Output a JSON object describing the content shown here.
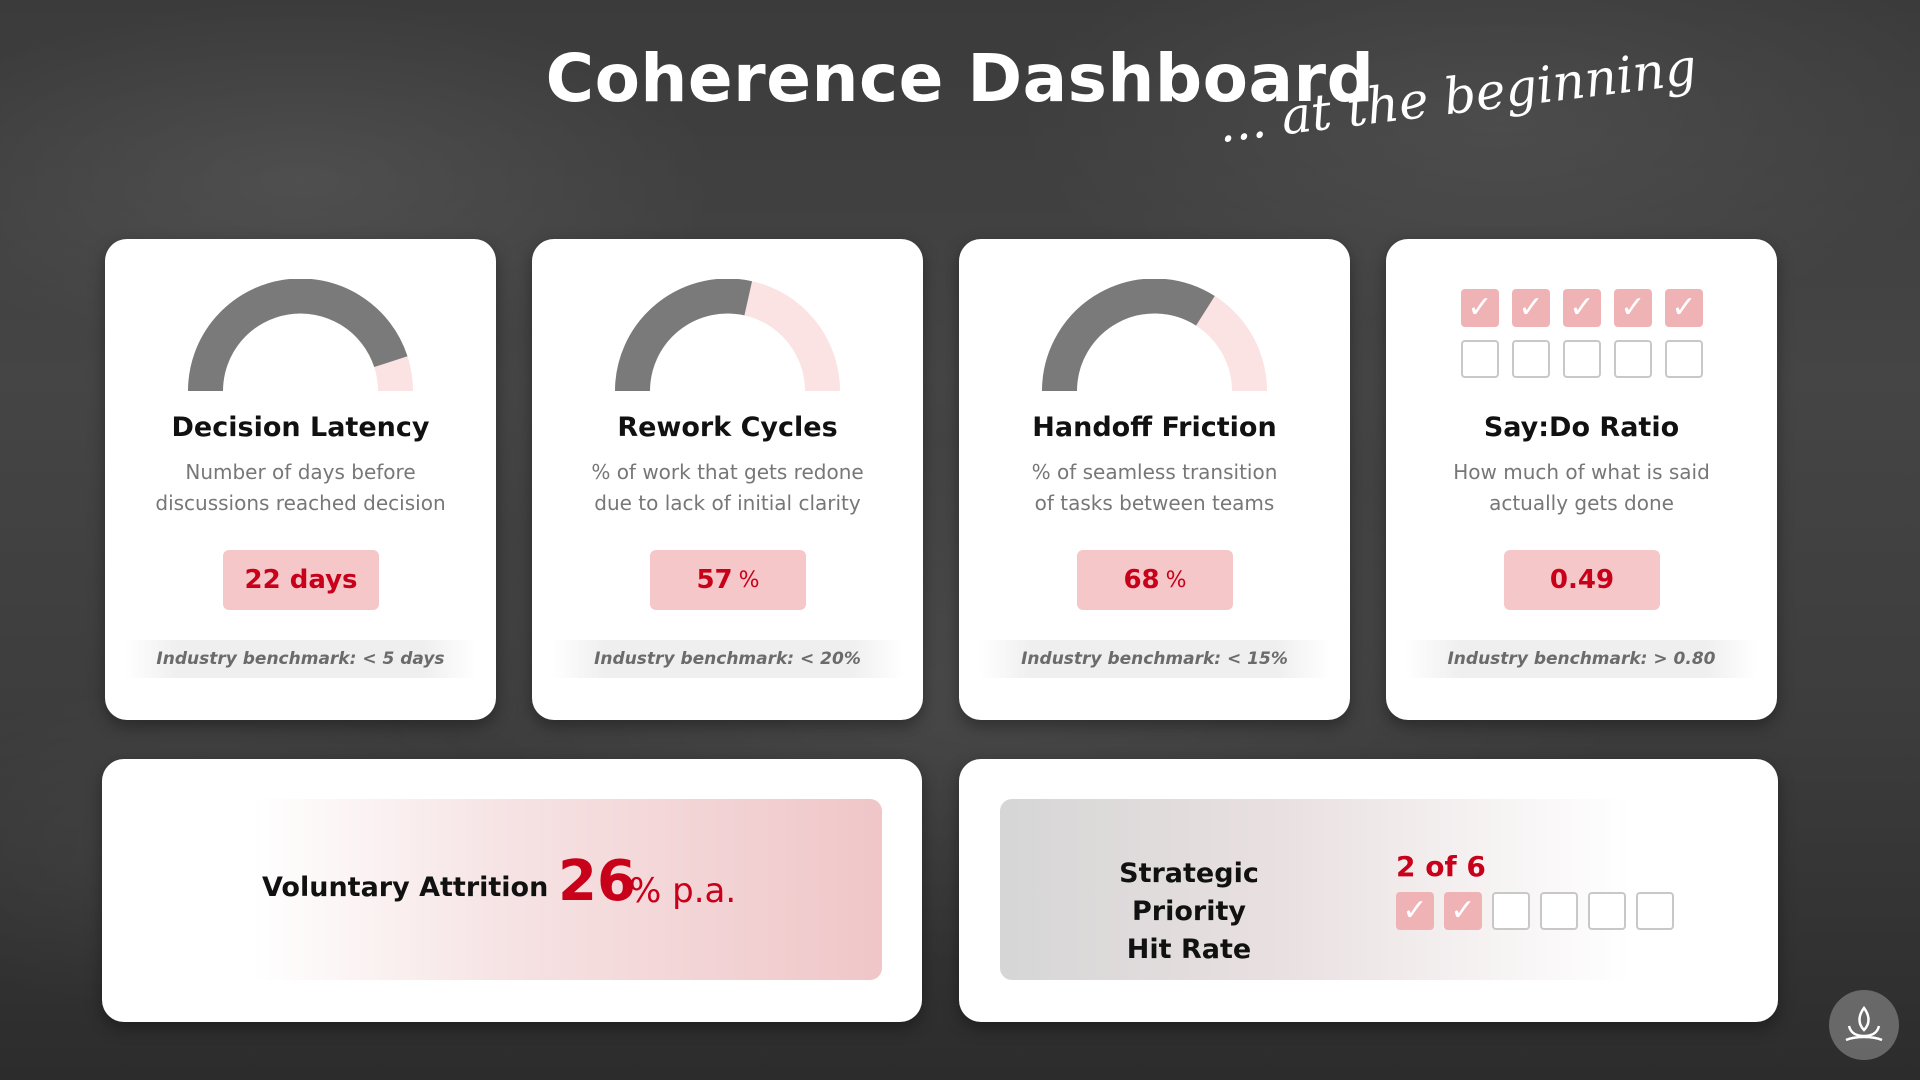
{
  "header": {
    "title": "Coherence Dashboard",
    "subtitle": "... at the beginning"
  },
  "colors": {
    "accent_red": "#c8001a",
    "value_bg": "#f5c7c8",
    "gauge_gray": "#7a7a7a",
    "gauge_pink": "#fbe2e3"
  },
  "metrics": [
    {
      "title": "Decision Latency",
      "desc_line1": "Number of days before",
      "desc_line2": "discussions reached decision",
      "value": "22 days",
      "unit": "",
      "benchmark": "Industry benchmark: < 5 days",
      "gauge_level": 0.9
    },
    {
      "title": "Rework Cycles",
      "desc_line1": "% of work that gets redone",
      "desc_line2": "due to lack of initial clarity",
      "value": "57",
      "unit": "%",
      "benchmark": "Industry benchmark: < 20%",
      "gauge_level": 0.57
    },
    {
      "title": "Handoff Friction",
      "desc_line1": "% of seamless transition",
      "desc_line2": "of tasks between teams",
      "value": "68",
      "unit": "%",
      "benchmark": "Industry benchmark: < 15%",
      "gauge_level": 0.68
    },
    {
      "title": "Say:Do Ratio",
      "desc_line1": "How much of what is said",
      "desc_line2": "actually gets done",
      "value": "0.49",
      "unit": "",
      "benchmark": "Industry benchmark: > 0.80",
      "checked": 5,
      "total": 10
    }
  ],
  "attrition": {
    "label": "Voluntary Attrition",
    "value": "26",
    "unit": "% p.a."
  },
  "strategic": {
    "label_line1": "Strategic Priority",
    "label_line2": "Hit Rate",
    "count_text": "2 of 6",
    "checked": 2,
    "total": 6
  },
  "icons": {
    "checkmark": "checkmark-icon",
    "logo": "lotus-logo-icon"
  }
}
